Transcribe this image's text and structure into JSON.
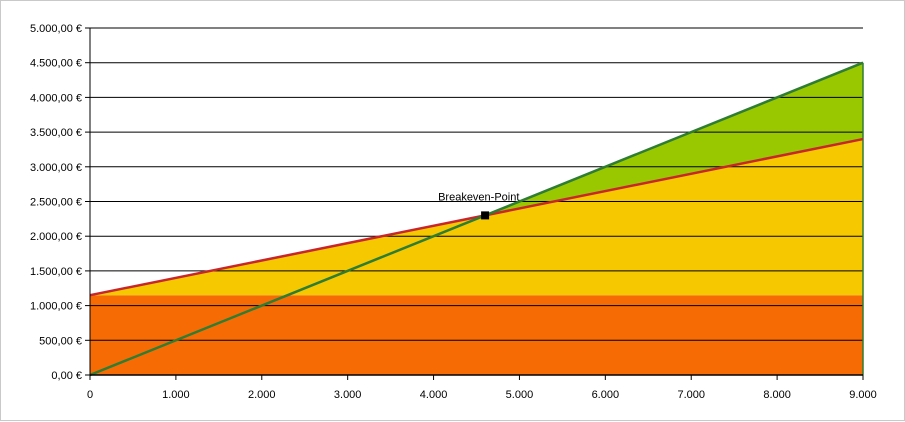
{
  "chart_data": {
    "type": "area",
    "title": "",
    "xlabel": "",
    "ylabel": "",
    "xlim": [
      0,
      9000
    ],
    "ylim": [
      0,
      5000
    ],
    "x_ticks": [
      0,
      1000,
      2000,
      3000,
      4000,
      5000,
      6000,
      7000,
      8000,
      9000
    ],
    "x_tick_labels": [
      "0",
      "1.000",
      "2.000",
      "3.000",
      "4.000",
      "5.000",
      "6.000",
      "7.000",
      "8.000",
      "9.000"
    ],
    "y_ticks": [
      0,
      500,
      1000,
      1500,
      2000,
      2500,
      3000,
      3500,
      4000,
      4500,
      5000
    ],
    "y_tick_labels": [
      "0,00 €",
      "500,00 €",
      "1.000,00 €",
      "1.500,00 €",
      "2.000,00 €",
      "2.500,00 €",
      "3.000,00 €",
      "3.500,00 €",
      "4.000,00 €",
      "4.500,00 €",
      "5.000,00 €"
    ],
    "grid": "horizontal",
    "series": [
      {
        "key": "fixed_costs",
        "type": "area",
        "x": [
          0,
          9000
        ],
        "values": [
          1150,
          1150
        ]
      },
      {
        "key": "total_costs",
        "type": "line",
        "x": [
          0,
          9000
        ],
        "values": [
          1150,
          3400
        ]
      },
      {
        "key": "revenue",
        "type": "line",
        "x": [
          0,
          9000
        ],
        "values": [
          0,
          4500
        ]
      }
    ],
    "areas": {
      "fixed_costs": "#f76b05",
      "variable_costs": "#f5c800",
      "profit": "#99c800"
    },
    "line_colors": {
      "total_costs": "#c8262c",
      "revenue": "#2e7d32"
    },
    "breakeven": {
      "label": "Breakeven-Point",
      "x": 4600,
      "y": 2300
    }
  }
}
